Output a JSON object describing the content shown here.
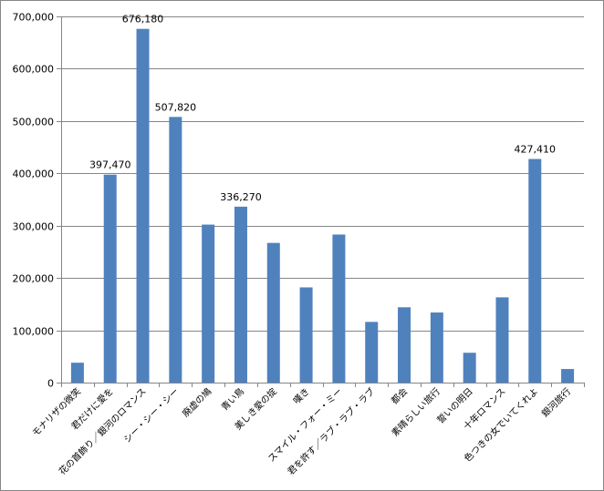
{
  "chart_data": {
    "type": "bar",
    "categories": [
      "モナリザの微笑",
      "君だけに愛を",
      "花の首飾り／銀河のロマンス",
      "シー・シー・シー",
      "廃虚の鳩",
      "青い鳥",
      "美しき愛の掟",
      "嘆き",
      "スマイル・フォー・ミー",
      "君を許す／ラブ・ラブ・ラブ",
      "都会",
      "素晴らしい旅行",
      "誓いの明日",
      "十年ロマンス",
      "色つきの女でいてくれよ",
      "銀河旅行"
    ],
    "values": [
      38000,
      397470,
      676180,
      507820,
      302000,
      336270,
      267000,
      182000,
      283000,
      116000,
      144000,
      134000,
      57000,
      163000,
      427410,
      26000
    ],
    "data_labels": [
      {
        "index": 1,
        "text": "397,470"
      },
      {
        "index": 2,
        "text": "676,180"
      },
      {
        "index": 3,
        "text": "507,820"
      },
      {
        "index": 5,
        "text": "336,270"
      },
      {
        "index": 14,
        "text": "427,410"
      }
    ],
    "ylim": [
      0,
      700000
    ],
    "y_ticks": [
      0,
      100000,
      200000,
      300000,
      400000,
      500000,
      600000,
      700000
    ],
    "y_tick_labels": [
      "0",
      "100,000",
      "200,000",
      "300,000",
      "400,000",
      "500,000",
      "600,000",
      "700,000"
    ],
    "title": "",
    "xlabel": "",
    "ylabel": "",
    "grid": true,
    "legend": "none",
    "bar_color": "#4f81bd",
    "grid_color": "#868686"
  }
}
